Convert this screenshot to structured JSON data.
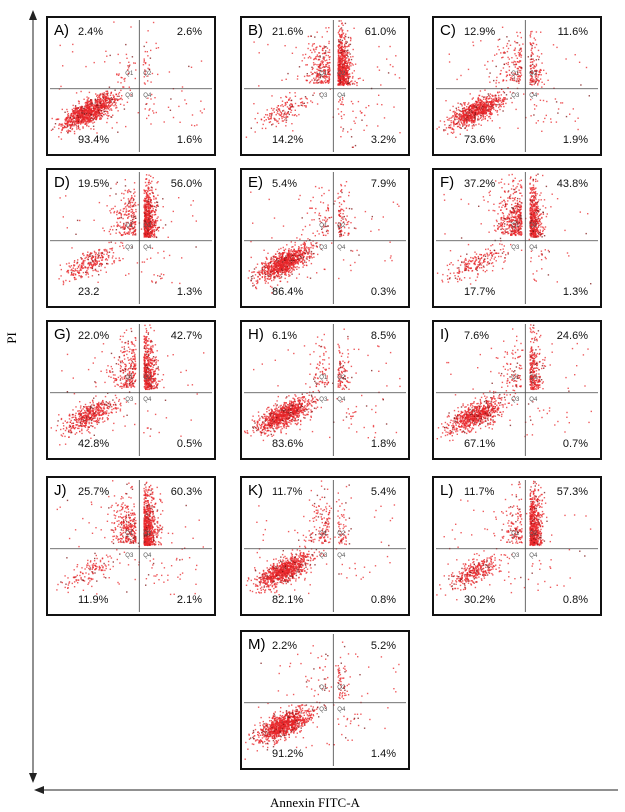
{
  "chart_data": {
    "type": "scatter",
    "xlabel": "Annexin FITC-A",
    "ylabel": "PI",
    "quadrant_tags": [
      "Q1",
      "Q2",
      "Q3",
      "Q4"
    ],
    "panels": [
      {
        "label": "A)",
        "ul": "2.4%",
        "ur": "2.6%",
        "ll": "93.4%",
        "lr": "1.6%",
        "values": [
          2.4,
          2.6,
          93.4,
          1.6
        ]
      },
      {
        "label": "B)",
        "ul": "21.6%",
        "ur": "61.0%",
        "ll": "14.2%",
        "lr": "3.2%",
        "values": [
          21.6,
          61.0,
          14.2,
          3.2
        ]
      },
      {
        "label": "C)",
        "ul": "12.9%",
        "ur": "11.6%",
        "ll": "73.6%",
        "lr": "1.9%",
        "values": [
          12.9,
          11.6,
          73.6,
          1.9
        ]
      },
      {
        "label": "D)",
        "ul": "19.5%",
        "ur": "56.0%",
        "ll": "23.2",
        "lr": "1.3%",
        "values": [
          19.5,
          56.0,
          23.2,
          1.3
        ]
      },
      {
        "label": "E)",
        "ul": "5.4%",
        "ur": "7.9%",
        "ll": "86.4%",
        "lr": "0.3%",
        "values": [
          5.4,
          7.9,
          86.4,
          0.3
        ]
      },
      {
        "label": "F)",
        "ul": "37.2%",
        "ur": "43.8%",
        "ll": "17.7%",
        "lr": "1.3%",
        "values": [
          37.2,
          43.8,
          17.7,
          1.3
        ]
      },
      {
        "label": "G)",
        "ul": "22.0%",
        "ur": "42.7%",
        "ll": "42.8%",
        "lr": "0.5%",
        "values": [
          22.0,
          42.7,
          42.8,
          0.5
        ]
      },
      {
        "label": "H)",
        "ul": "6.1%",
        "ur": "8.5%",
        "ll": "83.6%",
        "lr": "1.8%",
        "values": [
          6.1,
          8.5,
          83.6,
          1.8
        ]
      },
      {
        "label": "I)",
        "ul": "7.6%",
        "ur": "24.6%",
        "ll": "67.1%",
        "lr": "0.7%",
        "values": [
          7.6,
          24.6,
          67.1,
          0.7
        ]
      },
      {
        "label": "J)",
        "ul": "25.7%",
        "ur": "60.3%",
        "ll": "11.9%",
        "lr": "2.1%",
        "values": [
          25.7,
          60.3,
          11.9,
          2.1
        ]
      },
      {
        "label": "K)",
        "ul": "11.7%",
        "ur": "5.4%",
        "ll": "82.1%",
        "lr": "0.8%",
        "values": [
          11.7,
          5.4,
          82.1,
          0.8
        ]
      },
      {
        "label": "L)",
        "ul": "11.7%",
        "ur": "57.3%",
        "ll": "30.2%",
        "lr": "0.8%",
        "values": [
          11.7,
          57.3,
          30.2,
          0.8
        ]
      },
      {
        "label": "M)",
        "ul": "2.2%",
        "ur": "5.2%",
        "ll": "91.2%",
        "lr": "1.4%",
        "values": [
          2.2,
          5.2,
          91.2,
          1.4
        ]
      }
    ],
    "colors": {
      "dots": "#e8262a",
      "dots_dark": "#7a1010",
      "gate": "#444444",
      "frame": "#111111"
    }
  }
}
